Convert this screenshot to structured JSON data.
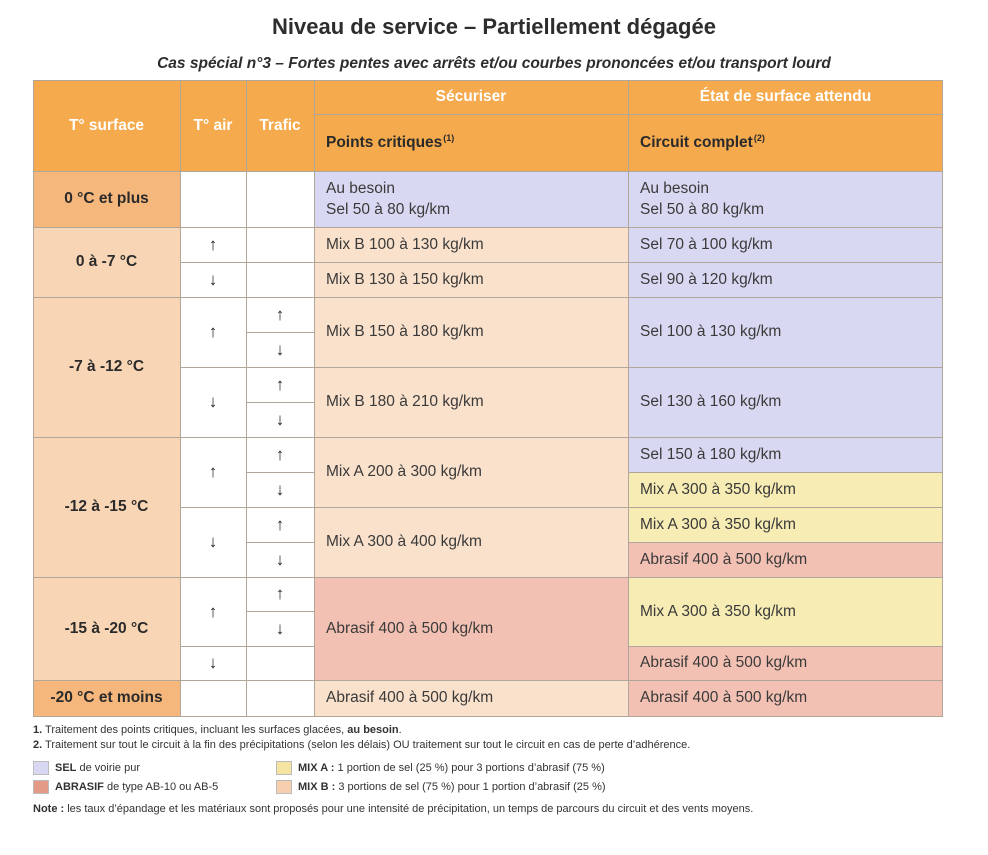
{
  "title": "Niveau de service – Partiellement dégagée",
  "subtitle": "Cas spécial n°3 – Fortes pentes avec arrêts et/ou courbes prononcées et/ou transport lourd",
  "headers": {
    "t_surface": "T° surface",
    "t_air": "T° air",
    "trafic": "Trafic",
    "securiser": "Sécuriser",
    "etat": "État de surface attendu",
    "points_critiques": "Points critiques",
    "points_critiques_note": "(1)",
    "circuit_complet": "Circuit complet",
    "circuit_complet_note": "(2)"
  },
  "row_labels": [
    "0 °C et plus",
    "0 à -7 °C",
    "-7 à -12 °C",
    "-12 à -15 °C",
    "-15 à -20 °C",
    "-20 °C et moins"
  ],
  "arrows": {
    "up": "↑",
    "down": "↓"
  },
  "cells": {
    "r0_pc_1": "Au besoin",
    "r0_pc_2": "Sel 50 à 80 kg/km",
    "r0_cc_1": "Au besoin",
    "r0_cc_2": "Sel 50 à 80 kg/km",
    "r1a_pc": "Mix B 100 à 130 kg/km",
    "r1a_cc": "Sel 70 à 100 kg/km",
    "r1b_pc": "Mix B 130 à 150 kg/km",
    "r1b_cc": "Sel 90 à 120 kg/km",
    "r2a_pc": "Mix B 150 à 180 kg/km",
    "r2a_cc": "Sel 100 à 130 kg/km",
    "r2b_pc": "Mix B 180 à 210 kg/km",
    "r2b_cc": "Sel 130 à 160 kg/km",
    "r3a_pc": "Mix A 200 à 300 kg/km",
    "r3a_cc1": "Sel 150 à 180 kg/km",
    "r3a_cc2": "Mix A 300 à 350 kg/km",
    "r3b_pc": "Mix A 300 à 400 kg/km",
    "r3b_cc1": "Mix A 300 à 350 kg/km",
    "r3b_cc2": "Abrasif 400 à 500 kg/km",
    "r4_pc": "Abrasif 400 à 500 kg/km",
    "r4_cc1": "Mix A 300 à 350 kg/km",
    "r4_cc2": "Abrasif 400 à 500 kg/km",
    "r5_pc": "Abrasif 400 à 500 kg/km",
    "r5_cc": "Abrasif 400 à 500 kg/km"
  },
  "notes": {
    "n1_num": "1.",
    "n1_text": "Traitement des points critiques, incluant les surfaces glacées,",
    "n1_bold": "au besoin",
    "n1_end": ".",
    "n2_num": "2.",
    "n2_text": "Traitement sur tout le circuit à la fin des précipitations (selon les délais) OU traitement sur tout le circuit en cas de perte d’adhérence."
  },
  "legend": {
    "sel_bold": "SEL",
    "sel_text": "de voirie pur",
    "abr_bold": "ABRASIF",
    "abr_text": "de type AB-10 ou AB-5",
    "mixa_bold": "MIX A :",
    "mixa_text": "1 portion de sel (25 %) pour 3 portions d’abrasif (75 %)",
    "mixb_bold": "MIX B :",
    "mixb_text": "3 portions de sel (75 %) pour 1 portion d’abrasif (25 %)"
  },
  "note_final": {
    "bold": "Note :",
    "text": "les taux d’épandage et les matériaux sont proposés pour une intensité de précipitation, un temps de parcours du circuit et des vents moyens."
  },
  "colors": {
    "header": "#f5aa4d",
    "label": "#f8d5b4",
    "sel": "#d8d8f2",
    "mix_a": "#f6ecb4",
    "mix_b": "#fae1cb",
    "abrasif": "#f3c1b3"
  }
}
